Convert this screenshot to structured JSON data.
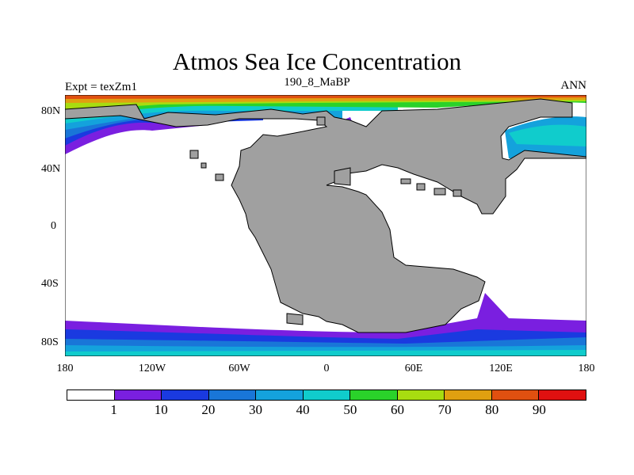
{
  "title": "Atmos Sea Ice Concentration",
  "subtitle_left": "Expt = texZm1",
  "subtitle_center": "190_8_MaBP",
  "subtitle_right": "ANN",
  "lat_labels": [
    "80N",
    "40N",
    "0",
    "40S",
    "80S"
  ],
  "lon_labels": [
    "180",
    "120W",
    "60W",
    "0",
    "60E",
    "120E",
    "180"
  ],
  "colorbar": {
    "labels": [
      "1",
      "10",
      "20",
      "30",
      "40",
      "50",
      "60",
      "70",
      "80",
      "90"
    ],
    "colors": [
      "#ffffff",
      "#7a1fe0",
      "#1a3ae0",
      "#1976d8",
      "#14a2dc",
      "#10cccc",
      "#2ad22a",
      "#a8dc10",
      "#e0a010",
      "#e05010",
      "#e01010"
    ]
  },
  "land_color": "#a0a0a0"
}
